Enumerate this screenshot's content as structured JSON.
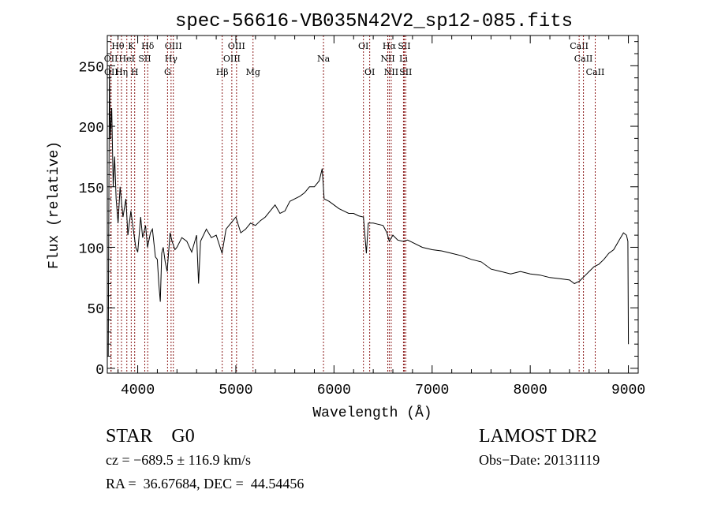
{
  "chart_data": {
    "type": "line",
    "title": "spec-56616-VB035N42V2_sp12-085.fits",
    "xlabel": "Wavelength (Å)",
    "ylabel": "Flux (relative)",
    "xlim": [
      3690,
      9100
    ],
    "ylim": [
      -4,
      275
    ],
    "xticks": [
      4000,
      5000,
      6000,
      7000,
      8000,
      9000
    ],
    "yticks": [
      0,
      50,
      100,
      150,
      200,
      250
    ],
    "grid": false,
    "series": [
      {
        "name": "spectrum",
        "x": [
          3700,
          3712,
          3720,
          3735,
          3750,
          3765,
          3780,
          3800,
          3820,
          3850,
          3880,
          3900,
          3930,
          3950,
          3980,
          4000,
          4030,
          4050,
          4080,
          4100,
          4130,
          4150,
          4180,
          4200,
          4215,
          4230,
          4245,
          4260,
          4280,
          4300,
          4330,
          4350,
          4380,
          4400,
          4450,
          4500,
          4550,
          4600,
          4620,
          4640,
          4700,
          4750,
          4800,
          4860,
          4900,
          4950,
          5000,
          5050,
          5100,
          5150,
          5200,
          5250,
          5300,
          5350,
          5400,
          5450,
          5500,
          5550,
          5600,
          5650,
          5700,
          5750,
          5800,
          5850,
          5880,
          5900,
          5950,
          6000,
          6050,
          6100,
          6150,
          6200,
          6250,
          6300,
          6330,
          6350,
          6400,
          6450,
          6500,
          6540,
          6563,
          6600,
          6650,
          6700,
          6750,
          6800,
          6900,
          7000,
          7100,
          7200,
          7300,
          7400,
          7500,
          7600,
          7700,
          7800,
          7900,
          8000,
          8100,
          8200,
          8300,
          8400,
          8450,
          8500,
          8550,
          8600,
          8650,
          8700,
          8750,
          8800,
          8850,
          8900,
          8950,
          8980,
          8995,
          9000
        ],
        "y": [
          10,
          250,
          190,
          215,
          150,
          175,
          140,
          120,
          150,
          125,
          140,
          110,
          130,
          118,
          100,
          96,
          125,
          108,
          118,
          100,
          112,
          115,
          92,
          90,
          70,
          55,
          95,
          100,
          88,
          80,
          112,
          105,
          98,
          100,
          108,
          105,
          96,
          110,
          70,
          105,
          115,
          108,
          110,
          95,
          115,
          120,
          125,
          112,
          115,
          120,
          118,
          122,
          125,
          130,
          135,
          128,
          130,
          138,
          140,
          142,
          145,
          150,
          150,
          155,
          165,
          140,
          138,
          135,
          132,
          130,
          128,
          128,
          126,
          125,
          95,
          120,
          120,
          119,
          118,
          112,
          105,
          110,
          106,
          105,
          106,
          104,
          100,
          98,
          97,
          95,
          93,
          90,
          88,
          82,
          80,
          78,
          80,
          78,
          77,
          75,
          74,
          73,
          70,
          72,
          76,
          80,
          84,
          86,
          90,
          95,
          98,
          105,
          112,
          110,
          105,
          20
        ]
      }
    ],
    "line_markers": [
      {
        "label": "Hθ",
        "wl": 3798,
        "row": 0
      },
      {
        "label": "K",
        "wl": 3934,
        "row": 0
      },
      {
        "label": "Hδ",
        "wl": 4102,
        "row": 0
      },
      {
        "label": "OIII",
        "wl": 4363,
        "row": 0
      },
      {
        "label": "OIII",
        "wl": 5007,
        "row": 0
      },
      {
        "label": "OI",
        "wl": 6300,
        "row": 0
      },
      {
        "label": "Hα",
        "wl": 6563,
        "row": 0
      },
      {
        "label": "SII",
        "wl": 6716,
        "row": 0
      },
      {
        "label": "CaII",
        "wl": 8498,
        "row": 0
      },
      {
        "label": "OII",
        "wl": 3727,
        "row": 1
      },
      {
        "label": "HeI",
        "wl": 3889,
        "row": 1
      },
      {
        "label": "SII",
        "wl": 4072,
        "row": 1
      },
      {
        "label": "Hγ",
        "wl": 4340,
        "row": 1
      },
      {
        "label": "OIII",
        "wl": 4959,
        "row": 1
      },
      {
        "label": "Na",
        "wl": 5893,
        "row": 1
      },
      {
        "label": "NII",
        "wl": 6548,
        "row": 1
      },
      {
        "label": "Li",
        "wl": 6708,
        "row": 1
      },
      {
        "label": "CaII",
        "wl": 8542,
        "row": 1
      },
      {
        "label": "OII",
        "wl": 3729,
        "row": 2
      },
      {
        "label": "Hη",
        "wl": 3835,
        "row": 2
      },
      {
        "label": "H",
        "wl": 3969,
        "row": 2
      },
      {
        "label": "G",
        "wl": 4304,
        "row": 2
      },
      {
        "label": "Hβ",
        "wl": 4861,
        "row": 2
      },
      {
        "label": "Mg",
        "wl": 5175,
        "row": 2
      },
      {
        "label": "OI",
        "wl": 6364,
        "row": 2
      },
      {
        "label": "NII",
        "wl": 6583,
        "row": 2
      },
      {
        "label": "SII",
        "wl": 6731,
        "row": 2
      },
      {
        "label": "CaII",
        "wl": 8662,
        "row": 2
      }
    ],
    "marker_color": "#8b1a1a"
  },
  "info": {
    "object_class": "STAR    G0",
    "redshift": "cz = −689.5 ± 116.9 km/s",
    "coords": "RA =  36.67684, DEC =  44.54456",
    "survey": "LAMOST DR2",
    "obs_date": "Obs−Date: 20131119"
  }
}
